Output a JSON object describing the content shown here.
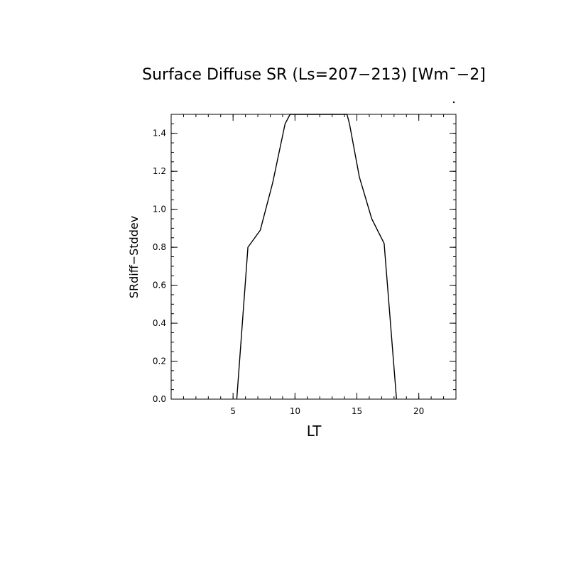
{
  "chart_data": {
    "type": "line",
    "title": "Surface Diffuse SR (Ls=207−213) [Wm¯−2]",
    "xlabel": "LT",
    "ylabel": "SRdiff−Stddev",
    "xlim": [
      0,
      23
    ],
    "ylim": [
      0,
      1.5
    ],
    "x_ticks": [
      5,
      10,
      15,
      20
    ],
    "x_tick_labels": [
      "5",
      "10",
      "15",
      "20"
    ],
    "y_ticks": [
      0.0,
      0.2,
      0.4,
      0.6,
      0.8,
      1.0,
      1.2,
      1.4
    ],
    "y_tick_labels": [
      "0.0",
      "0.2",
      "0.4",
      "0.6",
      "0.8",
      "1.0",
      "1.2",
      "1.4"
    ],
    "grid": false,
    "series": [
      {
        "x": [
          5.3,
          6.2,
          7.2,
          8.2,
          9.2,
          9.6,
          10.2,
          11.2,
          12.2,
          13.2,
          14.2,
          14.4,
          15.2,
          16.2,
          17.2,
          18.2
        ],
        "y": [
          0.0,
          0.8,
          0.89,
          1.14,
          1.45,
          1.5,
          1.5,
          1.5,
          1.5,
          1.5,
          1.5,
          1.45,
          1.17,
          0.95,
          0.82,
          0.0
        ]
      }
    ]
  }
}
